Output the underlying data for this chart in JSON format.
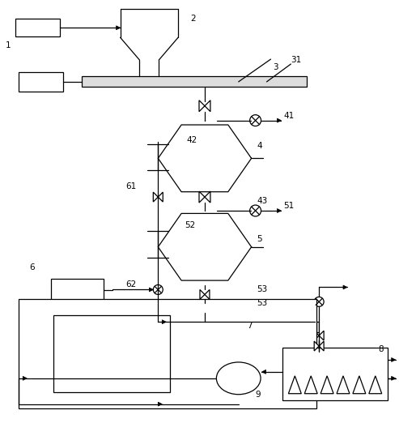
{
  "bg_color": "#ffffff",
  "line_color": "#000000",
  "fig_width": 4.93,
  "fig_height": 5.22,
  "dpi": 100
}
